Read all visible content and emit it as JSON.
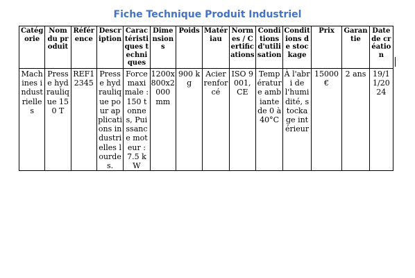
{
  "document": {
    "title": "Fiche Technique Produit Industriel",
    "table": {
      "headers": [
        "Catégorie",
        "Nom du produit",
        "Référence",
        "Description",
        "Caractéristiques techniques",
        "Dimensions",
        "Poids",
        "Matériau",
        "Normes / Certifications",
        "Conditions d'utilisation",
        "Conditions de stockage",
        "Prix",
        "Garantie",
        "Date de création"
      ],
      "rows": [
        [
          "Machines industrielles",
          "Presse hydraulique 150 T",
          "REF12345",
          "Presse hydraulique pour applications industrielles lourdes.",
          "Force maximale : 150 tonnes, Puissance moteur : 7.5 kW",
          "1200x800x2000 mm",
          "900 kg",
          "Acier renforcé",
          "ISO 9001, CE",
          "Température ambiante de 0 à 40°C",
          "À l'abri de l'humidité, stockage intérieur",
          "15000 €",
          "2 ans",
          "19/11/2024"
        ]
      ]
    }
  }
}
